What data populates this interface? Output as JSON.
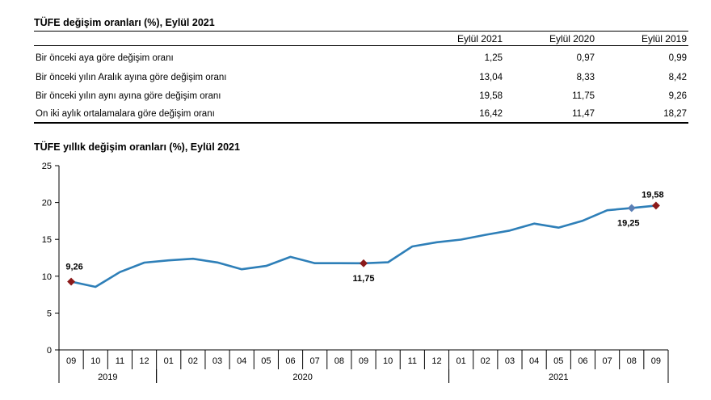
{
  "table": {
    "title": "TÜFE değişim oranları (%), Eylül 2021",
    "headers": [
      "Eylül 2021",
      "Eylül 2020",
      "Eylül 2019"
    ],
    "rows": [
      {
        "label": "Bir önceki aya göre değişim oranı",
        "values": [
          "1,25",
          "0,97",
          "0,99"
        ]
      },
      {
        "label": "Bir önceki yılın Aralık ayına göre değişim oranı",
        "values": [
          "13,04",
          "8,33",
          "8,42"
        ]
      },
      {
        "label": "Bir önceki yılın aynı ayına göre değişim oranı",
        "values": [
          "19,58",
          "11,75",
          "9,26"
        ]
      },
      {
        "label": "On iki aylık ortalamalara göre değişim oranı",
        "values": [
          "16,42",
          "11,47",
          "18,27"
        ]
      }
    ]
  },
  "chart_data": {
    "type": "line",
    "title": "TÜFE yıllık değişim oranları (%), Eylül 2021",
    "x": [
      "09",
      "10",
      "11",
      "12",
      "01",
      "02",
      "03",
      "04",
      "05",
      "06",
      "07",
      "08",
      "09",
      "10",
      "11",
      "12",
      "01",
      "02",
      "03",
      "04",
      "05",
      "06",
      "07",
      "08",
      "09"
    ],
    "years": [
      {
        "label": "2019",
        "from": 0,
        "to": 3
      },
      {
        "label": "2020",
        "from": 4,
        "to": 15
      },
      {
        "label": "2021",
        "from": 16,
        "to": 24
      }
    ],
    "series": [
      {
        "values": [
          9.26,
          8.55,
          10.56,
          11.84,
          12.15,
          12.37,
          11.86,
          10.94,
          11.39,
          12.62,
          11.76,
          11.77,
          11.75,
          11.89,
          14.03,
          14.6,
          14.97,
          15.61,
          16.19,
          17.14,
          16.59,
          17.53,
          18.95,
          19.25,
          19.58
        ]
      }
    ],
    "ylim": [
      0,
      25
    ],
    "yticks": [
      0,
      5,
      10,
      15,
      20,
      25
    ],
    "markers": [
      {
        "index": 0,
        "label": "9,26",
        "color": "#8b1a1a"
      },
      {
        "index": 12,
        "label": "11,75",
        "color": "#8b1a1a"
      },
      {
        "index": 23,
        "label": "19,25",
        "color": "#5b7fb5"
      },
      {
        "index": 24,
        "label": "19,58",
        "color": "#8b1a1a"
      }
    ],
    "line_color": "#2e7fb8",
    "grid": false
  }
}
